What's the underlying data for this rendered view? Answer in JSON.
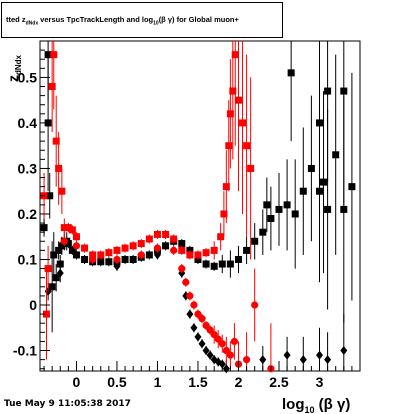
{
  "title": {
    "p1": "tted  z",
    "sub1": "dNdx",
    "p2": " versus TpcTrackLength and log",
    "sub2": "10",
    "p3": "(β γ) for Global muon+"
  },
  "timestamp": "Tue May  9 11:05:38 2017",
  "chart_data": {
    "type": "scatter",
    "title": "tted z_dNdx versus TpcTrackLength and log10(β γ) for Global muon+",
    "xlabel": "log10 (β γ)",
    "ylabel": "z dNdx",
    "xlim": [
      -0.45,
      3.5
    ],
    "ylim": [
      -0.145,
      0.58
    ],
    "x_ticks": [
      {
        "value": 0,
        "label": "0"
      },
      {
        "value": 0.5,
        "label": "0.5"
      },
      {
        "value": 1,
        "label": "1"
      },
      {
        "value": 1.5,
        "label": "1.5"
      },
      {
        "value": 2,
        "label": "2"
      },
      {
        "value": 2.5,
        "label": "2.5"
      },
      {
        "value": 3,
        "label": "3"
      }
    ],
    "y_ticks": [
      {
        "value": -0.1,
        "label": "-0.1"
      },
      {
        "value": 0,
        "label": "0"
      },
      {
        "value": 0.1,
        "label": "0.1"
      },
      {
        "value": 0.2,
        "label": "0.2"
      },
      {
        "value": 0.3,
        "label": "0.3"
      },
      {
        "value": 0.4,
        "label": "0.4"
      },
      {
        "value": 0.5,
        "label": "0.5"
      }
    ],
    "grid": false,
    "legend": "none",
    "series": [
      {
        "color": "#000000",
        "marker": "square",
        "points": [
          [
            -0.4,
            0.17,
            0.02
          ],
          [
            -0.35,
            0.4,
            0.15
          ],
          [
            -0.35,
            0.55,
            0.1
          ],
          [
            -0.33,
            0.24,
            0.05
          ],
          [
            -0.3,
            0.04,
            0.1
          ],
          [
            -0.28,
            0.11,
            0.05
          ],
          [
            -0.25,
            0.06,
            0.03
          ],
          [
            -0.22,
            0.12,
            0.02
          ],
          [
            -0.2,
            0.09,
            0.02
          ],
          [
            -0.18,
            0.13,
            0.02
          ],
          [
            -0.15,
            0.14,
            0.02
          ],
          [
            -0.12,
            0.14,
            0.02
          ],
          [
            -0.1,
            0.135,
            0.01
          ],
          [
            -0.05,
            0.12,
            0.01
          ],
          [
            0.0,
            0.11,
            0.01
          ],
          [
            0.1,
            0.1,
            0.01
          ],
          [
            0.2,
            0.095,
            0.01
          ],
          [
            0.3,
            0.095,
            0.01
          ],
          [
            0.4,
            0.095,
            0.01
          ],
          [
            0.5,
            0.095,
            0.01
          ],
          [
            0.6,
            0.1,
            0.01
          ],
          [
            0.7,
            0.1,
            0.01
          ],
          [
            0.8,
            0.105,
            0.01
          ],
          [
            0.9,
            0.11,
            0.01
          ],
          [
            1.0,
            0.12,
            0.01
          ],
          [
            1.1,
            0.13,
            0.01
          ],
          [
            1.2,
            0.14,
            0.01
          ],
          [
            1.3,
            0.135,
            0.01
          ],
          [
            1.4,
            0.12,
            0.01
          ],
          [
            1.5,
            0.1,
            0.01
          ],
          [
            1.6,
            0.09,
            0.01
          ],
          [
            1.7,
            0.085,
            0.01
          ],
          [
            1.8,
            0.09,
            0.02
          ],
          [
            1.9,
            0.09,
            0.03
          ],
          [
            2.0,
            0.1,
            0.03
          ],
          [
            2.1,
            0.12,
            0.03
          ],
          [
            2.2,
            0.14,
            0.04
          ],
          [
            2.3,
            0.16,
            0.05
          ],
          [
            2.4,
            0.19,
            0.07
          ],
          [
            2.5,
            0.21,
            0.08
          ],
          [
            2.6,
            0.22,
            0.1
          ],
          [
            2.7,
            0.2,
            0.12
          ],
          [
            2.8,
            0.25,
            0.14
          ],
          [
            2.9,
            0.3,
            0.16
          ],
          [
            3.0,
            0.25,
            0.2
          ],
          [
            3.1,
            0.21,
            0.22
          ],
          [
            3.2,
            0.33,
            0.22
          ],
          [
            3.3,
            0.21,
            0.25
          ],
          [
            3.4,
            0.26,
            0.25
          ],
          [
            3.1,
            0.47,
            0.2
          ],
          [
            3.3,
            0.47,
            0.25
          ],
          [
            3.0,
            0.4,
            0.2
          ],
          [
            3.05,
            0.27,
            0.2
          ],
          [
            2.65,
            0.51,
            0.15
          ],
          [
            2.35,
            0.22,
            0.06
          ]
        ]
      },
      {
        "color": "#000000",
        "marker": "diamond",
        "points": [
          [
            -0.35,
            0.03,
            0.02
          ],
          [
            -0.2,
            0.07,
            0.02
          ],
          [
            0.5,
            0.085,
            0.01
          ],
          [
            1.0,
            0.11,
            0.01
          ],
          [
            1.3,
            0.07,
            0.01
          ],
          [
            1.35,
            0.02,
            0.01
          ],
          [
            1.4,
            -0.02,
            0.01
          ],
          [
            1.45,
            -0.05,
            0.01
          ],
          [
            1.5,
            -0.07,
            0.01
          ],
          [
            1.55,
            -0.085,
            0.01
          ],
          [
            1.6,
            -0.1,
            0.01
          ],
          [
            1.65,
            -0.11,
            0.01
          ],
          [
            1.7,
            -0.12,
            0.01
          ],
          [
            1.75,
            -0.125,
            0.01
          ],
          [
            1.8,
            -0.13,
            0.01
          ],
          [
            1.85,
            -0.14,
            0.02
          ],
          [
            2.3,
            -0.12,
            0.03
          ],
          [
            2.6,
            -0.11,
            0.04
          ],
          [
            2.8,
            -0.12,
            0.05
          ],
          [
            3.0,
            -0.11,
            0.06
          ],
          [
            3.1,
            -0.12,
            0.06
          ],
          [
            3.3,
            -0.1,
            0.08
          ]
        ]
      },
      {
        "color": "#ff0000",
        "marker": "square",
        "points": [
          [
            -0.4,
            0.24,
            0.05
          ],
          [
            -0.37,
            -0.02,
            0.1
          ],
          [
            -0.35,
            0.08,
            0.05
          ],
          [
            -0.3,
            0.48,
            0.1
          ],
          [
            -0.28,
            0.55,
            0.12
          ],
          [
            -0.25,
            0.36,
            0.1
          ],
          [
            -0.22,
            0.3,
            0.08
          ],
          [
            -0.18,
            0.25,
            0.05
          ],
          [
            -0.15,
            0.17,
            0.02
          ],
          [
            -0.1,
            0.17,
            0.01
          ],
          [
            -0.05,
            0.165,
            0.01
          ],
          [
            0.0,
            0.15,
            0.01
          ],
          [
            0.1,
            0.125,
            0.01
          ],
          [
            0.2,
            0.11,
            0.01
          ],
          [
            0.3,
            0.11,
            0.01
          ],
          [
            0.4,
            0.115,
            0.01
          ],
          [
            0.5,
            0.12,
            0.01
          ],
          [
            0.6,
            0.125,
            0.01
          ],
          [
            0.7,
            0.13,
            0.01
          ],
          [
            0.8,
            0.135,
            0.01
          ],
          [
            0.9,
            0.145,
            0.01
          ],
          [
            1.0,
            0.155,
            0.01
          ],
          [
            1.1,
            0.155,
            0.01
          ],
          [
            1.2,
            0.145,
            0.01
          ],
          [
            1.3,
            0.12,
            0.01
          ],
          [
            1.4,
            0.11,
            0.01
          ],
          [
            1.5,
            0.11,
            0.01
          ],
          [
            1.6,
            0.115,
            0.01
          ],
          [
            1.7,
            0.12,
            0.02
          ],
          [
            1.78,
            0.15,
            0.03
          ],
          [
            1.82,
            0.2,
            0.05
          ],
          [
            1.85,
            0.26,
            0.08
          ],
          [
            1.88,
            0.35,
            0.1
          ],
          [
            1.9,
            0.42,
            0.12
          ],
          [
            1.93,
            0.47,
            0.15
          ],
          [
            1.96,
            0.55,
            0.2
          ],
          [
            2.0,
            0.45,
            0.2
          ],
          [
            2.05,
            0.4,
            0.2
          ],
          [
            2.1,
            0.35,
            0.2
          ],
          [
            2.15,
            0.3,
            0.2
          ]
        ]
      },
      {
        "color": "#ff0000",
        "marker": "circle",
        "points": [
          [
            -0.15,
            0.14,
            0.01
          ],
          [
            0.0,
            0.13,
            0.01
          ],
          [
            0.2,
            0.1,
            0.01
          ],
          [
            0.5,
            0.1,
            0.01
          ],
          [
            0.8,
            0.11,
            0.01
          ],
          [
            1.0,
            0.125,
            0.01
          ],
          [
            1.2,
            0.12,
            0.01
          ],
          [
            1.3,
            0.08,
            0.01
          ],
          [
            1.35,
            0.05,
            0.01
          ],
          [
            1.4,
            0.02,
            0.01
          ],
          [
            1.45,
            0.0,
            0.01
          ],
          [
            1.5,
            -0.02,
            0.01
          ],
          [
            1.55,
            -0.03,
            0.01
          ],
          [
            1.6,
            -0.045,
            0.01
          ],
          [
            1.65,
            -0.055,
            0.01
          ],
          [
            1.7,
            -0.065,
            0.02
          ],
          [
            1.75,
            -0.075,
            0.02
          ],
          [
            1.8,
            -0.085,
            0.02
          ],
          [
            1.85,
            -0.1,
            0.03
          ],
          [
            1.9,
            -0.11,
            0.03
          ],
          [
            1.95,
            -0.08,
            0.04
          ],
          [
            2.0,
            -0.13,
            0.05
          ],
          [
            2.1,
            -0.12,
            0.06
          ],
          [
            2.2,
            0.0,
            0.08
          ],
          [
            2.4,
            -0.14,
            0.1
          ]
        ]
      }
    ]
  }
}
